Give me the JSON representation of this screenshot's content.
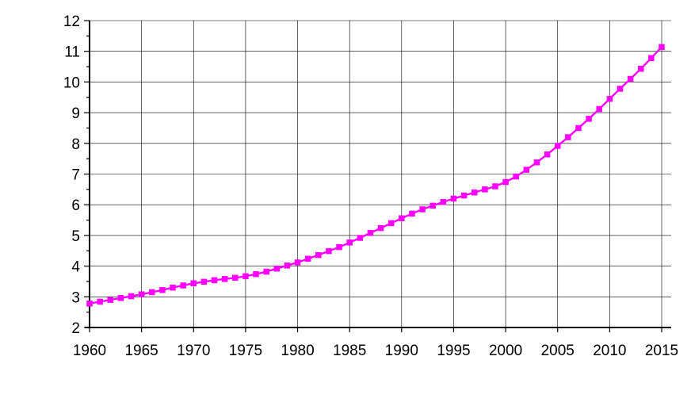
{
  "chart_data": {
    "type": "line",
    "title": "",
    "xlabel": "",
    "ylabel": "",
    "xlim": [
      1960,
      2015
    ],
    "ylim": [
      2,
      12
    ],
    "grid": true,
    "legend": "none",
    "marker": "square",
    "colors": {
      "series": "#ff00ff",
      "axis": "#000000",
      "grid": "#000000",
      "background": "#ffffff"
    },
    "x_ticks": [
      1960,
      1965,
      1970,
      1975,
      1980,
      1985,
      1990,
      1995,
      2000,
      2005,
      2010,
      2015
    ],
    "x_tick_labels": [
      "1960",
      "1965",
      "1970",
      "1975",
      "1980",
      "1985",
      "1990",
      "1995",
      "2000",
      "2005",
      "2010",
      "2015"
    ],
    "y_ticks": [
      2,
      3,
      4,
      5,
      6,
      7,
      8,
      9,
      10,
      11,
      12
    ],
    "y_tick_labels": [
      "2",
      "3",
      "4",
      "5",
      "6",
      "7",
      "8",
      "9",
      "10",
      "11",
      "12"
    ],
    "series": [
      {
        "x": [
          1960,
          1961,
          1962,
          1963,
          1964,
          1965,
          1966,
          1967,
          1968,
          1969,
          1970,
          1971,
          1972,
          1973,
          1974,
          1975,
          1976,
          1977,
          1978,
          1979,
          1980,
          1981,
          1982,
          1983,
          1984,
          1985,
          1986,
          1987,
          1988,
          1989,
          1990,
          1991,
          1992,
          1993,
          1994,
          1995,
          1996,
          1997,
          1998,
          1999,
          2000,
          2001,
          2002,
          2003,
          2004,
          2005,
          2006,
          2007,
          2008,
          2009,
          2010,
          2011,
          2012,
          2013,
          2014,
          2015
        ],
        "values": [
          2.78,
          2.84,
          2.9,
          2.96,
          3.02,
          3.08,
          3.15,
          3.22,
          3.3,
          3.37,
          3.44,
          3.49,
          3.54,
          3.58,
          3.62,
          3.67,
          3.74,
          3.82,
          3.92,
          4.02,
          4.12,
          4.24,
          4.36,
          4.49,
          4.62,
          4.77,
          4.92,
          5.08,
          5.24,
          5.4,
          5.56,
          5.71,
          5.85,
          5.97,
          6.09,
          6.2,
          6.3,
          6.4,
          6.5,
          6.6,
          6.74,
          6.92,
          7.14,
          7.38,
          7.64,
          7.92,
          8.2,
          8.5,
          8.8,
          9.12,
          9.45,
          9.78,
          10.1,
          10.43,
          10.78,
          11.14
        ]
      }
    ]
  }
}
